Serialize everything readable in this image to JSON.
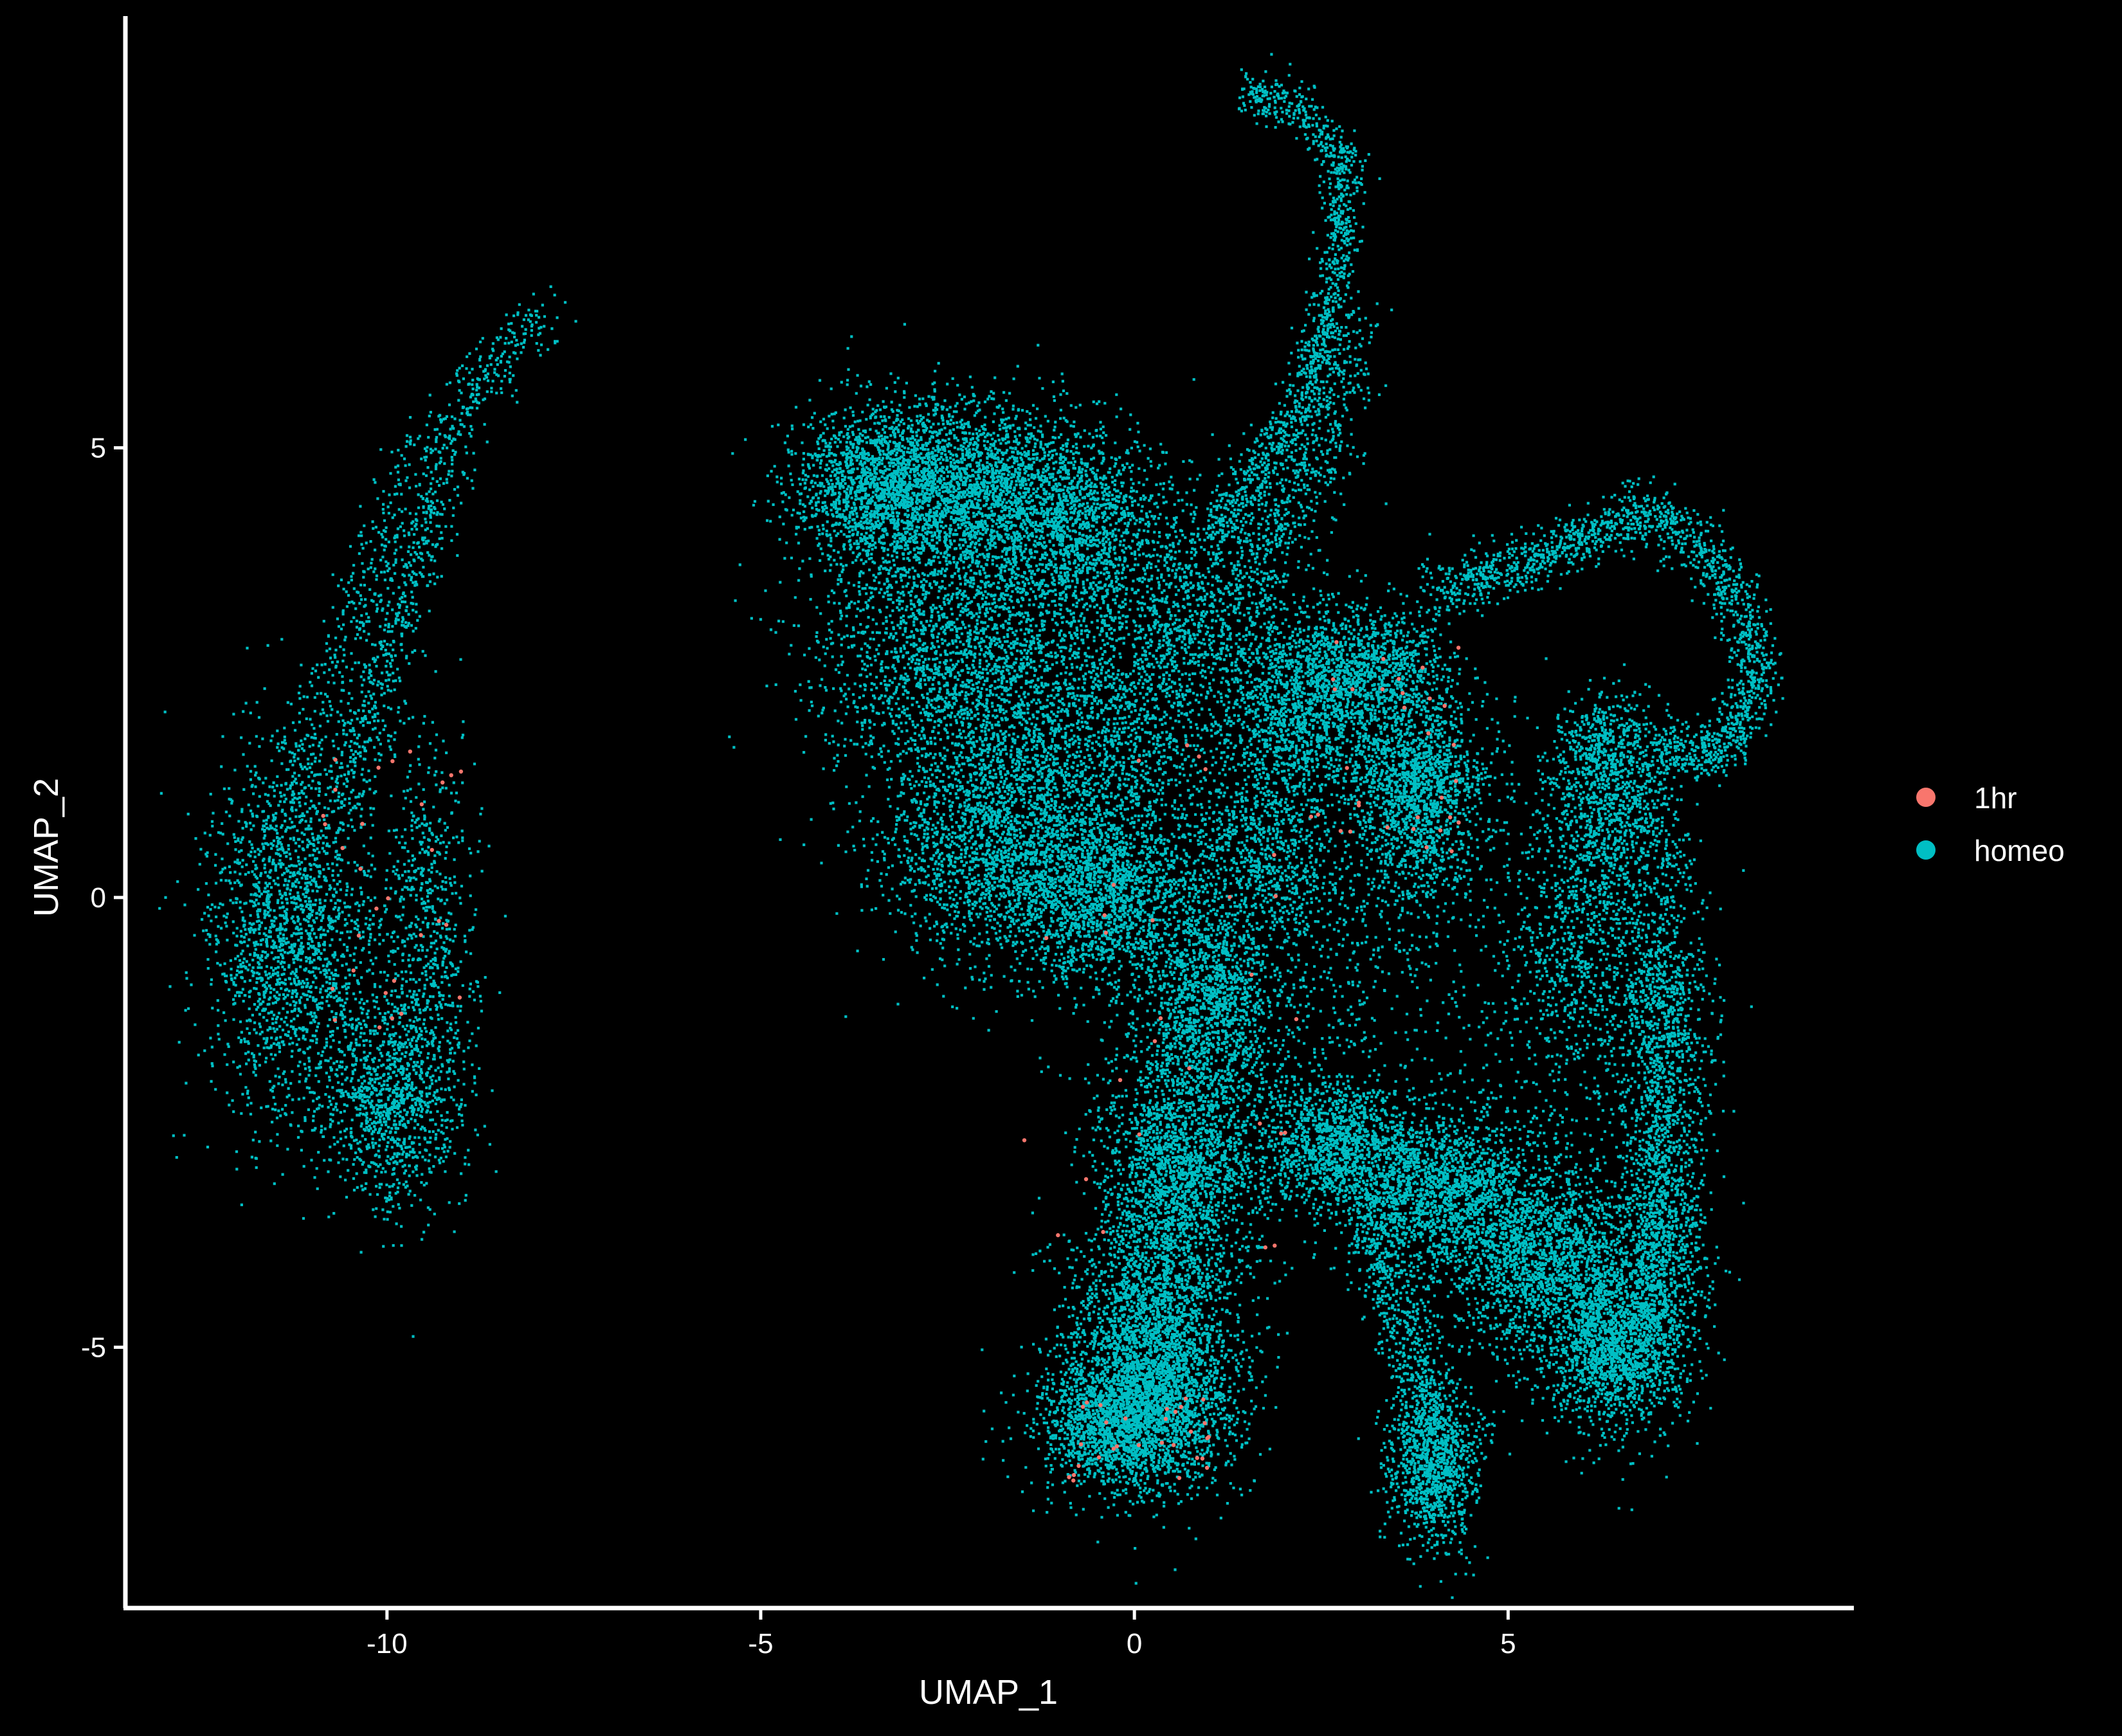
{
  "chart_data": {
    "type": "scatter",
    "title": "",
    "xlabel": "UMAP_1",
    "ylabel": "UMAP_2",
    "xlim": [
      -13.5,
      9.6
    ],
    "ylim": [
      -7.9,
      9.8
    ],
    "x_ticks": [
      -10,
      -5,
      0,
      5
    ],
    "y_ticks": [
      -5,
      0,
      5
    ],
    "grid": false,
    "background": "#000000",
    "axis_color": "#ffffff",
    "legend_placement": "right",
    "series": [
      {
        "name": "1hr",
        "color": "#F8766D",
        "approx_points": 120,
        "regions": [
          {
            "x": [
              -11,
              -9
            ],
            "y": [
              -1.5,
              2
            ]
          },
          {
            "x": [
              -1.5,
              2.5
            ],
            "y": [
              -4,
              3
            ]
          },
          {
            "x": [
              2.5,
              4.5
            ],
            "y": [
              0.5,
              3
            ]
          },
          {
            "x": [
              -1,
              1
            ],
            "y": [
              -6.5,
              -5.5
            ]
          }
        ]
      },
      {
        "name": "homeo",
        "color": "#00BFC4",
        "approx_points": 60000,
        "clusters": [
          {
            "label": "left lobe",
            "x_range": [
              -12.6,
              -7.8
            ],
            "y_range": [
              -3.1,
              6.5
            ]
          },
          {
            "label": "upper-left body",
            "x_range": [
              -4.4,
              1.5
            ],
            "y_range": [
              -0.5,
              5.7
            ]
          },
          {
            "label": "top filament",
            "x_range": [
              1.2,
              3.0
            ],
            "y_range": [
              2.5,
              8.9
            ]
          },
          {
            "label": "center stem",
            "x_range": [
              -0.6,
              2.0
            ],
            "y_range": [
              -6.7,
              -0.5
            ]
          },
          {
            "label": "right middle",
            "x_range": [
              1.5,
              4.7
            ],
            "y_range": [
              0.0,
              3.5
            ]
          },
          {
            "label": "right loop",
            "x_range": [
              4.0,
              8.5
            ],
            "y_range": [
              1.5,
              4.4
            ]
          },
          {
            "label": "right lower arm",
            "x_range": [
              2.0,
              7.8
            ],
            "y_range": [
              -5.7,
              1.8
            ]
          },
          {
            "label": "bottom middle lobe",
            "x_range": [
              2.8,
              4.9
            ],
            "y_range": [
              -7.1,
              -3.0
            ]
          }
        ]
      }
    ]
  }
}
